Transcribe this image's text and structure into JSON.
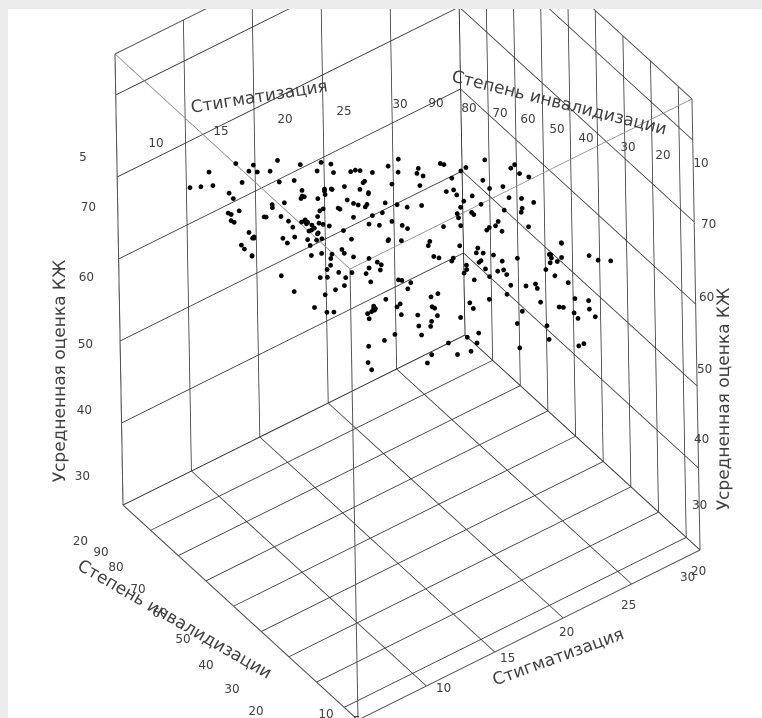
{
  "chart_data": {
    "type": "scatter",
    "projection": "3d",
    "title": "",
    "x_axis": {
      "label": "Стигматизация",
      "ticks": [
        5,
        10,
        15,
        20,
        25,
        30
      ],
      "range": [
        5,
        30
      ]
    },
    "y_axis": {
      "label": "Степень инвалидизации",
      "ticks": [
        10,
        20,
        30,
        40,
        50,
        60,
        70,
        80,
        90
      ],
      "range": [
        5,
        90
      ]
    },
    "z_axis": {
      "label": "Усредненная оценка КЖ",
      "ticks": [
        20,
        30,
        40,
        50,
        60,
        70
      ],
      "range": [
        20,
        75
      ]
    },
    "grid": true,
    "legend": "none",
    "marker_color": "#000000",
    "point_count": 330
  }
}
